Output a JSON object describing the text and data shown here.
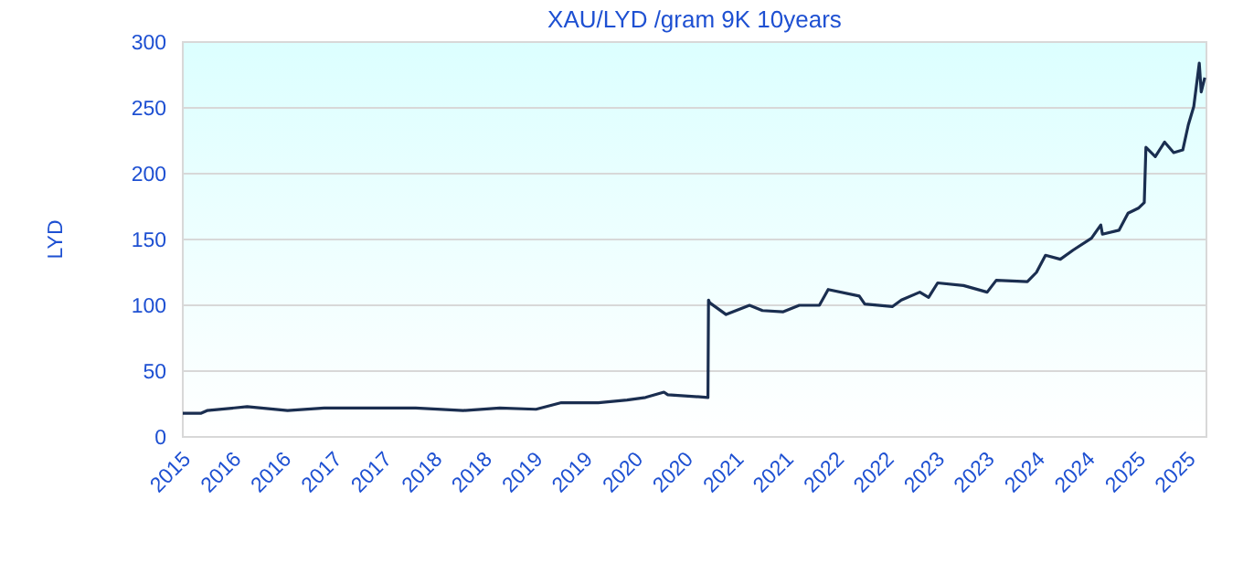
{
  "chart_data": {
    "type": "line",
    "title": "XAU/LYD /gram 9K 10years",
    "ylabel": "LYD",
    "x": [
      "2015-08-20",
      "2015-10-26",
      "2015-11-16",
      "2016-04-10",
      "2016-09-04",
      "2017-01-15",
      "2017-12-14",
      "2018-06-04",
      "2018-10-15",
      "2019-02-24",
      "2019-05-27",
      "2019-10-08",
      "2020-01-21",
      "2020-03-28",
      "2020-06-03",
      "2020-06-17",
      "2020-11-10",
      "2020-11-12",
      "2020-11-16",
      "2021-01-15",
      "2021-04-10",
      "2021-05-27",
      "2021-08-09",
      "2021-10-08",
      "2021-12-20",
      "2022-01-21",
      "2022-05-14",
      "2022-06-03",
      "2022-09-11",
      "2022-10-14",
      "2022-12-20",
      "2023-01-21",
      "2023-02-23",
      "2023-05-28",
      "2023-08-22",
      "2023-09-24",
      "2024-01-15",
      "2024-02-17",
      "2024-03-21",
      "2024-05-14",
      "2024-06-30",
      "2024-09-04",
      "2024-10-08",
      "2024-10-14",
      "2024-12-13",
      "2025-01-15",
      "2025-02-23",
      "2025-03-15",
      "2025-03-21",
      "2025-04-24",
      "2025-05-28",
      "2025-06-30",
      "2025-08-02",
      "2025-08-22",
      "2025-09-11",
      "2025-10-01",
      "2025-10-08",
      "2025-10-21"
    ],
    "series": [
      {
        "color": "#1a2e50",
        "values": [
          18,
          18,
          20,
          23,
          20,
          22,
          22,
          20,
          22,
          21,
          26,
          26,
          28,
          30,
          34,
          32,
          30,
          104,
          102,
          93,
          100,
          96,
          95,
          100,
          100,
          112,
          107,
          101,
          99,
          104,
          110,
          106,
          117,
          115,
          110,
          119,
          118,
          125,
          138,
          135,
          142,
          151,
          161,
          154,
          157,
          170,
          174,
          178,
          220,
          213,
          224,
          216,
          218,
          237,
          251,
          284,
          262,
          273
        ]
      }
    ],
    "xlim": [
      "2015-08-20",
      "2025-10-27"
    ],
    "xticks": [
      {
        "value": "2015-08-20",
        "label": "2015"
      },
      {
        "value": "2016-02-20",
        "label": "2016"
      },
      {
        "value": "2016-08-20",
        "label": "2016"
      },
      {
        "value": "2017-02-20",
        "label": "2017"
      },
      {
        "value": "2017-08-20",
        "label": "2017"
      },
      {
        "value": "2018-02-20",
        "label": "2018"
      },
      {
        "value": "2018-08-20",
        "label": "2018"
      },
      {
        "value": "2019-02-20",
        "label": "2019"
      },
      {
        "value": "2019-08-20",
        "label": "2019"
      },
      {
        "value": "2020-02-20",
        "label": "2020"
      },
      {
        "value": "2020-08-20",
        "label": "2020"
      },
      {
        "value": "2021-02-20",
        "label": "2021"
      },
      {
        "value": "2021-08-20",
        "label": "2021"
      },
      {
        "value": "2022-02-20",
        "label": "2022"
      },
      {
        "value": "2022-08-20",
        "label": "2022"
      },
      {
        "value": "2023-02-20",
        "label": "2023"
      },
      {
        "value": "2023-08-20",
        "label": "2023"
      },
      {
        "value": "2024-02-20",
        "label": "2024"
      },
      {
        "value": "2024-08-20",
        "label": "2024"
      },
      {
        "value": "2025-02-20",
        "label": "2025"
      },
      {
        "value": "2025-08-20",
        "label": "2025"
      }
    ],
    "ylim": [
      0,
      300
    ],
    "yticks": [
      0,
      50,
      100,
      150,
      200,
      250,
      300
    ],
    "grid": "y",
    "marker": "none",
    "line_style": "solid"
  }
}
